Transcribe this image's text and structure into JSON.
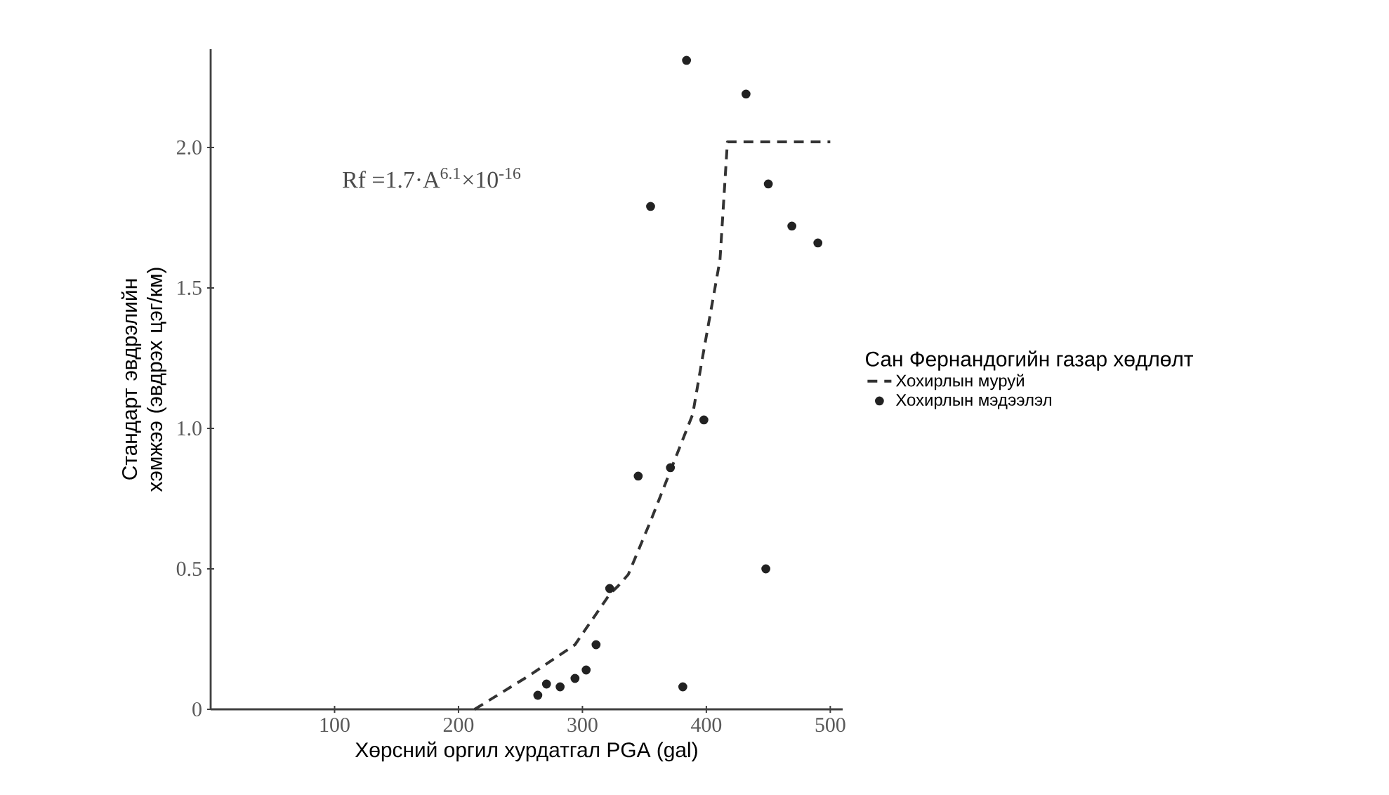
{
  "chart_data": {
    "type": "scatter",
    "xlabel": "Хөрсний оргил хурдатгал PGA (gal)",
    "ylabel": "Стандарт эвдрэлийн хэмжээ (эвдрэх цэг/км)",
    "legend_title": "Сан Фернандогийн газар хөдлөлт",
    "annotations": [
      "Rf =1.7·A$^{6.1}$×10$^{-16}$"
    ],
    "series": [
      {
        "name": "Хохирлын муруй",
        "type": "line",
        "line_style": "dashed",
        "marker": "none",
        "color": "#333333",
        "x": [
          213,
          257,
          294,
          322,
          329,
          337,
          355,
          372,
          389,
          396,
          411,
          417,
          500
        ],
        "values": [
          0.0,
          0.12,
          0.23,
          0.41,
          0.44,
          0.48,
          0.67,
          0.86,
          1.05,
          1.23,
          1.6,
          2.02,
          2.02
        ]
      },
      {
        "name": "Хохирлын мэдээлэл",
        "marker": "circle",
        "color": "#222222",
        "x": [
          264,
          271,
          282,
          294,
          303,
          311,
          322,
          345,
          355,
          371,
          381,
          384,
          398,
          432,
          448,
          450,
          469,
          490
        ],
        "values": [
          0.05,
          0.09,
          0.08,
          0.11,
          0.14,
          0.23,
          0.43,
          0.83,
          1.79,
          0.86,
          0.08,
          2.31,
          1.03,
          2.19,
          0.5,
          1.87,
          1.72,
          1.66
        ]
      }
    ],
    "xlim": [
      0,
      510
    ],
    "ylim": [
      0,
      2.35
    ],
    "xticks": [
      100,
      200,
      300,
      400,
      500
    ],
    "yticks": [
      0,
      {
        "value": 0.5,
        "label": "0.5"
      },
      {
        "value": 1.0,
        "label": "1.0"
      },
      {
        "value": 1.5,
        "label": "1.5"
      },
      {
        "value": 2.0,
        "label": "2.0"
      }
    ],
    "legend": "right",
    "grid": false
  }
}
